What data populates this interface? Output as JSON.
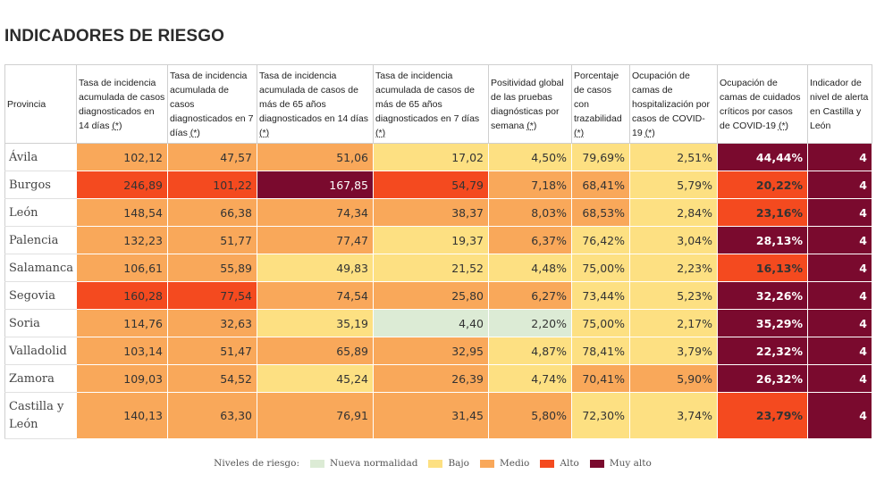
{
  "title": "INDICADORES DE RIESGO",
  "headers": [
    {
      "text": "Provincia",
      "star": ""
    },
    {
      "text": "Tasa de incidencia acumulada de casos diagnosticados en 14 días",
      "star": "(*)"
    },
    {
      "text": "Tasa de incidencia acumulada de casos diagnosticados en 7 días",
      "star": "(*)"
    },
    {
      "text": "Tasa de incidencia acumulada de casos de más de 65 años diagnosticados en 14 días",
      "star": "(*)"
    },
    {
      "text": "Tasa de incidencia acumulada de casos de más de 65 años diagnosticados en 7 días",
      "star": "(*)"
    },
    {
      "text": "Positividad global de las pruebas diagnósticas por semana",
      "star": "(*)"
    },
    {
      "text": "Porcentaje de casos con trazabilidad",
      "star": "(*)"
    },
    {
      "text": "Ocupación de camas de hospitalización por casos de COVID-19",
      "star": "(*)"
    },
    {
      "text": "Ocupación de camas de cuidados críticos por casos de COVID-19",
      "star": "(*)"
    },
    {
      "text": "Indicador de nivel de alerta en Castilla y León",
      "star": ""
    }
  ],
  "rows": [
    {
      "province": "Ávila",
      "cells": [
        {
          "v": "102,12",
          "l": "medio"
        },
        {
          "v": "47,57",
          "l": "medio"
        },
        {
          "v": "51,06",
          "l": "medio"
        },
        {
          "v": "17,02",
          "l": "bajo"
        },
        {
          "v": "4,50%",
          "l": "bajo"
        },
        {
          "v": "79,69%",
          "l": "bajo"
        },
        {
          "v": "2,51%",
          "l": "bajo"
        },
        {
          "v": "44,44%",
          "l": "muy"
        },
        {
          "v": "4",
          "l": "muy"
        }
      ]
    },
    {
      "province": "Burgos",
      "cells": [
        {
          "v": "246,89",
          "l": "alto"
        },
        {
          "v": "101,22",
          "l": "alto"
        },
        {
          "v": "167,85",
          "l": "muy"
        },
        {
          "v": "54,79",
          "l": "alto"
        },
        {
          "v": "7,18%",
          "l": "medio"
        },
        {
          "v": "68,41%",
          "l": "medio"
        },
        {
          "v": "5,79%",
          "l": "bajo"
        },
        {
          "v": "20,22%",
          "l": "alto"
        },
        {
          "v": "4",
          "l": "muy"
        }
      ]
    },
    {
      "province": "León",
      "cells": [
        {
          "v": "148,54",
          "l": "medio"
        },
        {
          "v": "66,38",
          "l": "medio"
        },
        {
          "v": "74,34",
          "l": "medio"
        },
        {
          "v": "38,37",
          "l": "medio"
        },
        {
          "v": "8,03%",
          "l": "medio"
        },
        {
          "v": "68,53%",
          "l": "medio"
        },
        {
          "v": "2,84%",
          "l": "bajo"
        },
        {
          "v": "23,16%",
          "l": "alto"
        },
        {
          "v": "4",
          "l": "muy"
        }
      ]
    },
    {
      "province": "Palencia",
      "cells": [
        {
          "v": "132,23",
          "l": "medio"
        },
        {
          "v": "51,77",
          "l": "medio"
        },
        {
          "v": "77,47",
          "l": "medio"
        },
        {
          "v": "19,37",
          "l": "bajo"
        },
        {
          "v": "6,37%",
          "l": "medio"
        },
        {
          "v": "76,42%",
          "l": "bajo"
        },
        {
          "v": "3,04%",
          "l": "bajo"
        },
        {
          "v": "28,13%",
          "l": "muy"
        },
        {
          "v": "4",
          "l": "muy"
        }
      ]
    },
    {
      "province": "Salamanca",
      "cells": [
        {
          "v": "106,61",
          "l": "medio"
        },
        {
          "v": "55,89",
          "l": "medio"
        },
        {
          "v": "49,83",
          "l": "bajo"
        },
        {
          "v": "21,52",
          "l": "bajo"
        },
        {
          "v": "4,48%",
          "l": "bajo"
        },
        {
          "v": "75,00%",
          "l": "bajo"
        },
        {
          "v": "2,23%",
          "l": "bajo"
        },
        {
          "v": "16,13%",
          "l": "alto"
        },
        {
          "v": "4",
          "l": "muy"
        }
      ]
    },
    {
      "province": "Segovia",
      "cells": [
        {
          "v": "160,28",
          "l": "alto"
        },
        {
          "v": "77,54",
          "l": "alto"
        },
        {
          "v": "74,54",
          "l": "medio"
        },
        {
          "v": "25,80",
          "l": "medio"
        },
        {
          "v": "6,27%",
          "l": "medio"
        },
        {
          "v": "73,44%",
          "l": "bajo"
        },
        {
          "v": "5,23%",
          "l": "bajo"
        },
        {
          "v": "32,26%",
          "l": "muy"
        },
        {
          "v": "4",
          "l": "muy"
        }
      ]
    },
    {
      "province": "Soria",
      "cells": [
        {
          "v": "114,76",
          "l": "medio"
        },
        {
          "v": "32,63",
          "l": "medio"
        },
        {
          "v": "35,19",
          "l": "bajo"
        },
        {
          "v": "4,40",
          "l": "nueva"
        },
        {
          "v": "2,20%",
          "l": "nueva"
        },
        {
          "v": "75,00%",
          "l": "bajo"
        },
        {
          "v": "2,17%",
          "l": "bajo"
        },
        {
          "v": "35,29%",
          "l": "muy"
        },
        {
          "v": "4",
          "l": "muy"
        }
      ]
    },
    {
      "province": "Valladolid",
      "cells": [
        {
          "v": "103,14",
          "l": "medio"
        },
        {
          "v": "51,47",
          "l": "medio"
        },
        {
          "v": "65,89",
          "l": "medio"
        },
        {
          "v": "32,95",
          "l": "medio"
        },
        {
          "v": "4,87%",
          "l": "bajo"
        },
        {
          "v": "78,41%",
          "l": "bajo"
        },
        {
          "v": "3,79%",
          "l": "bajo"
        },
        {
          "v": "22,32%",
          "l": "muy"
        },
        {
          "v": "4",
          "l": "muy"
        }
      ]
    },
    {
      "province": "Zamora",
      "cells": [
        {
          "v": "109,03",
          "l": "medio"
        },
        {
          "v": "54,52",
          "l": "medio"
        },
        {
          "v": "45,24",
          "l": "bajo"
        },
        {
          "v": "26,39",
          "l": "medio"
        },
        {
          "v": "4,74%",
          "l": "bajo"
        },
        {
          "v": "70,41%",
          "l": "medio"
        },
        {
          "v": "5,90%",
          "l": "medio"
        },
        {
          "v": "26,32%",
          "l": "muy"
        },
        {
          "v": "4",
          "l": "muy"
        }
      ]
    },
    {
      "province": "Castilla y León",
      "cells": [
        {
          "v": "140,13",
          "l": "medio"
        },
        {
          "v": "63,30",
          "l": "medio"
        },
        {
          "v": "76,91",
          "l": "medio"
        },
        {
          "v": "31,45",
          "l": "medio"
        },
        {
          "v": "5,80%",
          "l": "medio"
        },
        {
          "v": "72,30%",
          "l": "bajo"
        },
        {
          "v": "3,74%",
          "l": "bajo"
        },
        {
          "v": "23,79%",
          "l": "alto"
        },
        {
          "v": "4",
          "l": "muy"
        }
      ]
    }
  ],
  "legend": {
    "label": "Niveles de riesgo:",
    "items": [
      {
        "name": "Nueva normalidad",
        "color": "#dcebd5"
      },
      {
        "name": "Bajo",
        "color": "#fde082"
      },
      {
        "name": "Medio",
        "color": "#f9a85a"
      },
      {
        "name": "Alto",
        "color": "#f44a1f"
      },
      {
        "name": "Muy alto",
        "color": "#7a0a2e"
      }
    ]
  },
  "colors": {
    "nueva": "#dcebd5",
    "bajo": "#fde082",
    "medio": "#f9a85a",
    "alto": "#f44a1f",
    "muy": "#7a0a2e"
  }
}
